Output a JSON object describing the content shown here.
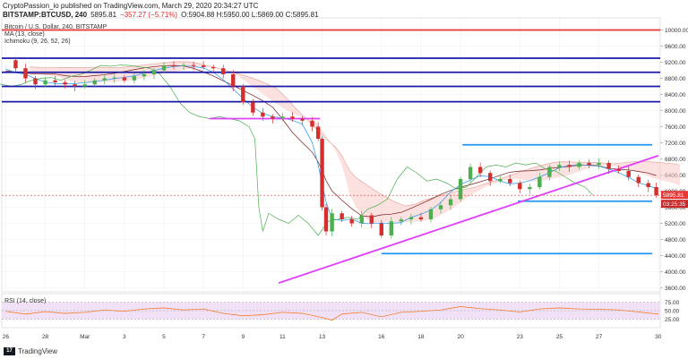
{
  "header": {
    "line1": "CryptoPassion_io published on TradingView.com, March 29, 2020 20:34:27 UTC",
    "symbol": "BITSTAMP:BTCUSD, 240",
    "last": "5895.81",
    "change": "−357.27 (−5.71%)",
    "ohlc": "O:5904.88 H:5950.00 L:5869.00 C:5895.81"
  },
  "legend": {
    "title": "Bitcoin / U.S. Dollar, 240, BITSTAMP",
    "ma": "MA (13, close)",
    "ichimoku": "Ichimoku (9, 26, 52, 26)",
    "rsi": "RSI (14, close)"
  },
  "footer": {
    "brand": "TradingView",
    "logo": "17"
  },
  "colors": {
    "up": "#26a69a",
    "down": "#ef5350",
    "candle_up_body": "#4caf50",
    "candle_down_body": "#d32f2f",
    "red_line": "#e53935",
    "navy_line": "#1a1aa8",
    "blue_line": "#2196f3",
    "magenta": "#e040fb",
    "price_tag": "#e53935",
    "cloud_red": "#f8c9c4",
    "cloud_green": "#c8e6c9",
    "ma": "#2196f3",
    "chikou": "#4caf50",
    "kijun": "#7b1f1f",
    "rsi_line": "#f57c2b",
    "rsi_band": "#f1e1f7"
  },
  "chart_data": {
    "type": "candlestick",
    "title": "Bitcoin / U.S. Dollar, 240, BITSTAMP",
    "y_ticks": [
      "10000.00",
      "9600.00",
      "9200.00",
      "8800.00",
      "8400.00",
      "8000.00",
      "7600.00",
      "7200.00",
      "6800.00",
      "6400.00",
      "6000.00",
      "5600.00",
      "5200.00",
      "4800.00",
      "4400.00",
      "4000.00",
      "3600.00"
    ],
    "y_tick_values": [
      10000,
      9600,
      9200,
      8800,
      8400,
      8000,
      7600,
      7200,
      6800,
      6400,
      6000,
      5600,
      5200,
      4800,
      4400,
      4000,
      3600
    ],
    "ylim": [
      3500,
      10300
    ],
    "x_ticks": [
      "26",
      "28",
      "Mar",
      "3",
      "5",
      "7",
      "9",
      "11",
      "13",
      "16",
      "18",
      "20",
      "23",
      "25",
      "27",
      "30"
    ],
    "x_tick_days": [
      -4,
      -2,
      0,
      2,
      4,
      6,
      8,
      10,
      12,
      15,
      17,
      19,
      22,
      24,
      26,
      29
    ],
    "xlim_days": [
      -4.2,
      29.1
    ],
    "price_label": "5895.81",
    "countdown_label": "03:25:35",
    "horizontal_levels": [
      {
        "price": 10000,
        "color": "red"
      },
      {
        "price": 9300,
        "color": "navy"
      },
      {
        "price": 8950,
        "color": "navy"
      },
      {
        "price": 8600,
        "color": "navy"
      },
      {
        "price": 8220,
        "color": "navy"
      }
    ],
    "segments": [
      {
        "color": "magenta",
        "x": [
          6.3,
          11.9
        ],
        "y": [
          7800,
          7800
        ]
      },
      {
        "color": "blue",
        "x": [
          19.1,
          28.7
        ],
        "y": [
          7150,
          7150
        ]
      },
      {
        "color": "blue",
        "x": [
          21.9,
          28.7
        ],
        "y": [
          5750,
          5750
        ]
      },
      {
        "color": "blue",
        "x": [
          15.0,
          28.7
        ],
        "y": [
          4450,
          4450
        ]
      },
      {
        "color": "magenta",
        "x": [
          9.8,
          29.0
        ],
        "y": [
          3720,
          6880
        ]
      }
    ],
    "close_series": {
      "x": [
        -4.0,
        -3.5,
        -3.0,
        -2.5,
        -2.0,
        -1.5,
        -1.0,
        -0.5,
        0.0,
        0.5,
        1.0,
        1.5,
        2.0,
        2.5,
        3.0,
        3.5,
        4.0,
        4.5,
        5.0,
        5.5,
        6.0,
        6.5,
        7.0,
        7.5,
        8.0,
        8.5,
        9.0,
        9.5,
        10.0,
        10.5,
        11.0,
        11.5,
        11.8,
        12.0,
        12.2,
        12.5,
        13.0,
        13.5,
        14.0,
        14.5,
        15.0,
        15.5,
        16.0,
        16.5,
        17.0,
        17.5,
        18.0,
        18.5,
        19.0,
        19.5,
        20.0,
        20.5,
        21.0,
        21.5,
        22.0,
        22.5,
        23.0,
        23.5,
        24.0,
        24.5,
        25.0,
        25.5,
        26.0,
        26.5,
        27.0,
        27.5,
        28.0,
        28.5,
        28.9
      ],
      "y": [
        9250,
        9050,
        8800,
        8650,
        8750,
        8700,
        8650,
        8600,
        8650,
        8750,
        8800,
        8820,
        8750,
        8850,
        8900,
        9000,
        9120,
        9100,
        9130,
        9120,
        9080,
        9050,
        8900,
        8600,
        8200,
        7950,
        7850,
        7800,
        7850,
        7800,
        7750,
        7600,
        7300,
        5600,
        5000,
        5450,
        5300,
        5200,
        5400,
        5200,
        4900,
        5250,
        5300,
        5350,
        5300,
        5550,
        5650,
        5800,
        6300,
        6600,
        6450,
        6250,
        6300,
        6200,
        6050,
        6100,
        6350,
        6600,
        6650,
        6600,
        6700,
        6650,
        6700,
        6550,
        6500,
        6350,
        6200,
        6100,
        5895.81
      ]
    },
    "indicators": {
      "ma": {
        "name": "MA (13, close)"
      },
      "ichimoku": {
        "name": "Ichimoku (9, 26, 52, 26)"
      }
    },
    "rsi": {
      "name": "RSI (14, close)",
      "levels": [
        "75.00",
        "50.00",
        "25.00"
      ],
      "level_values": [
        75,
        50,
        25
      ],
      "x": [
        -4,
        -3,
        -2,
        -1,
        0,
        1,
        2,
        3,
        4,
        5,
        6,
        7,
        8,
        9,
        10,
        11,
        12,
        12.5,
        13,
        14,
        15,
        16,
        17,
        18,
        19,
        20,
        21,
        22,
        23,
        24,
        25,
        26,
        27,
        28,
        29
      ],
      "values": [
        48,
        40,
        47,
        42,
        45,
        52,
        48,
        55,
        58,
        52,
        55,
        42,
        35,
        38,
        45,
        42,
        30,
        22,
        40,
        45,
        32,
        45,
        48,
        52,
        62,
        56,
        52,
        46,
        55,
        58,
        55,
        54,
        52,
        46,
        40
      ]
    }
  }
}
